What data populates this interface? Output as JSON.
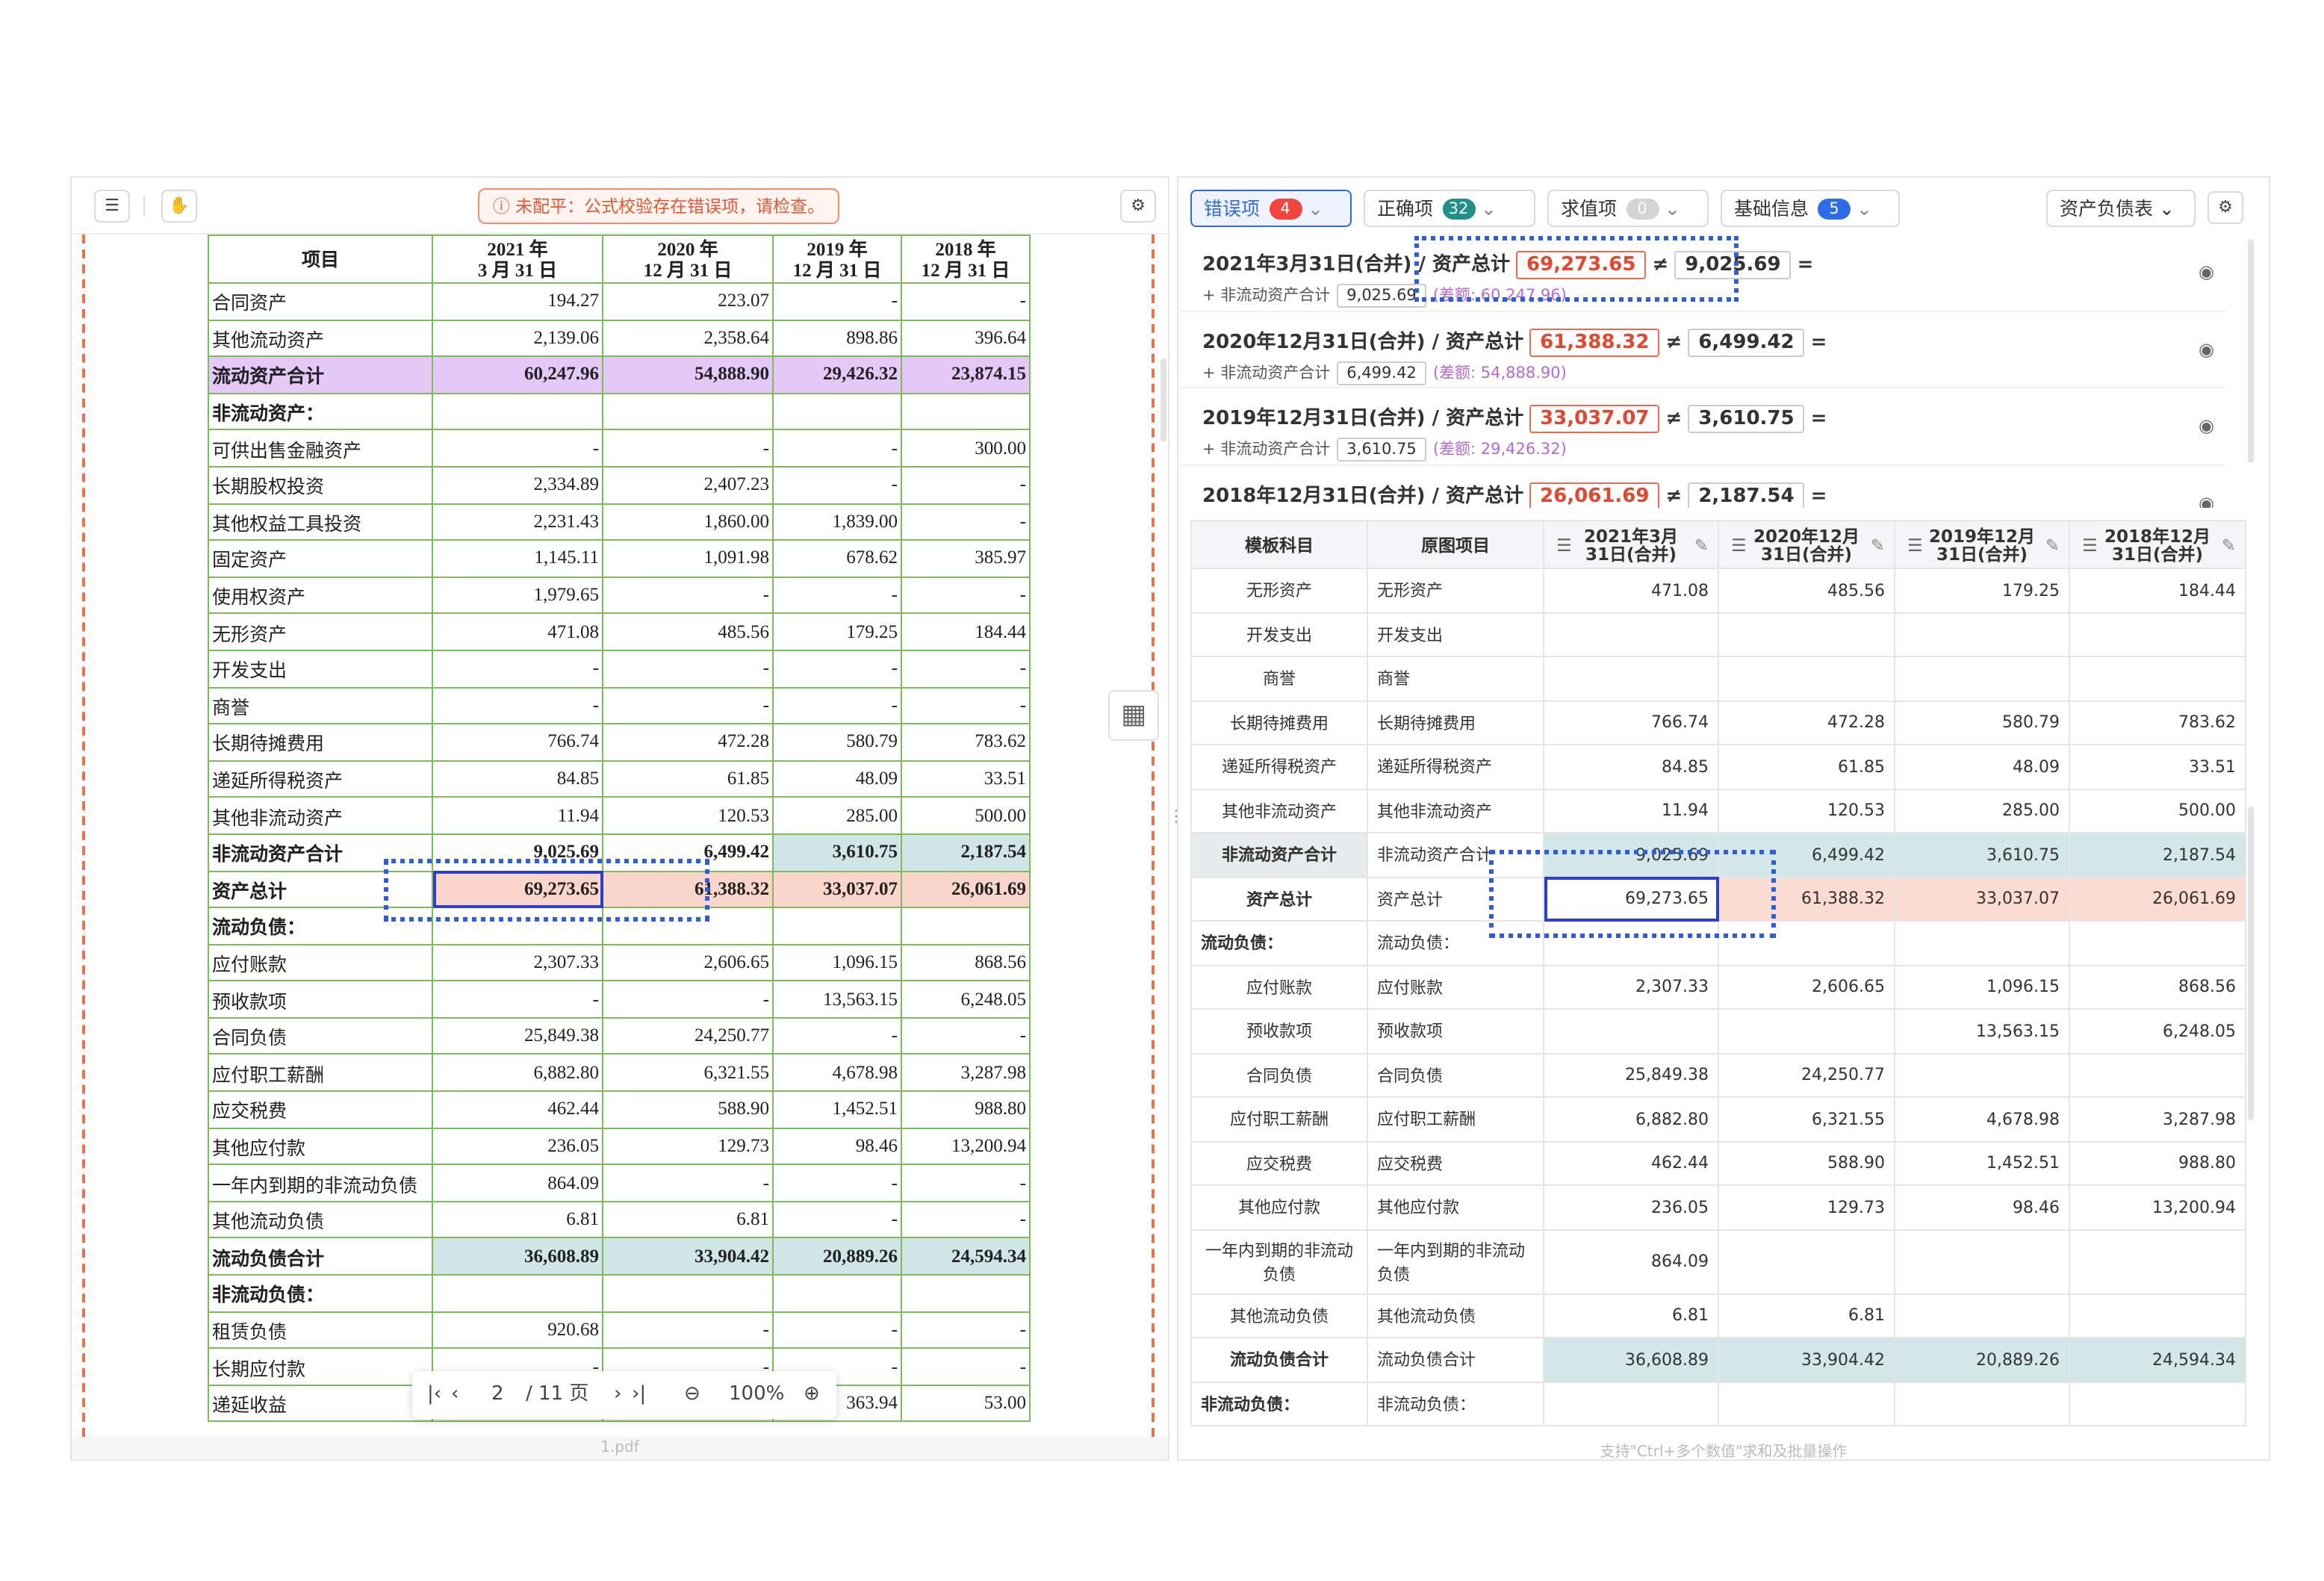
{
  "left_panel": {
    "banner": "未配平：公式校验存在错误项，请检查。",
    "file_name": "1.pdf",
    "page": "2",
    "page_total": "/ 11 页",
    "zoom": "100%",
    "table": {
      "header": [
        "项目",
        [
          "2021 年",
          "3 月 31 日"
        ],
        [
          "2020 年",
          "12 月 31 日"
        ],
        [
          "2019 年",
          "12 月 31 日"
        ],
        [
          "2018 年",
          "12 月 31 日"
        ]
      ],
      "rows": [
        {
          "cells": [
            "合同资产",
            "194.27",
            "223.07",
            "-",
            "-"
          ]
        },
        {
          "cells": [
            "其他流动资产",
            "2,139.06",
            "2,358.64",
            "898.86",
            "396.64"
          ]
        },
        {
          "cells": [
            "流动资产合计",
            "60,247.96",
            "54,888.90",
            "29,426.32",
            "23,874.15"
          ],
          "bold": true,
          "fills": [
            "#e4c9f7",
            "#e4c9f7",
            "#e4c9f7",
            "#e4c9f7",
            "#e4c9f7"
          ]
        },
        {
          "cells": [
            "非流动资产："
          ],
          "bold": true
        },
        {
          "cells": [
            "可供出售金融资产",
            "-",
            "-",
            "-",
            "300.00"
          ]
        },
        {
          "cells": [
            "长期股权投资",
            "2,334.89",
            "2,407.23",
            "-",
            "-"
          ]
        },
        {
          "cells": [
            "其他权益工具投资",
            "2,231.43",
            "1,860.00",
            "1,839.00",
            "-"
          ]
        },
        {
          "cells": [
            "固定资产",
            "1,145.11",
            "1,091.98",
            "678.62",
            "385.97"
          ]
        },
        {
          "cells": [
            "使用权资产",
            "1,979.65",
            "-",
            "-",
            "-"
          ]
        },
        {
          "cells": [
            "无形资产",
            "471.08",
            "485.56",
            "179.25",
            "184.44"
          ]
        },
        {
          "cells": [
            "开发支出",
            "-",
            "-",
            "-",
            "-"
          ]
        },
        {
          "cells": [
            "商誉",
            "-",
            "-",
            "-",
            "-"
          ]
        },
        {
          "cells": [
            "长期待摊费用",
            "766.74",
            "472.28",
            "580.79",
            "783.62"
          ]
        },
        {
          "cells": [
            "递延所得税资产",
            "84.85",
            "61.85",
            "48.09",
            "33.51"
          ]
        },
        {
          "cells": [
            "其他非流动资产",
            "11.94",
            "120.53",
            "285.00",
            "500.00"
          ]
        },
        {
          "cells": [
            "非流动资产合计",
            "9,025.69",
            "6,499.42",
            "3,610.75",
            "2,187.54"
          ],
          "bold": true,
          "fills": [
            null,
            null,
            null,
            "#cfe5e6",
            "#cfe5e6"
          ]
        },
        {
          "cells": [
            "资产总计",
            "69,273.65",
            "61,388.32",
            "33,037.07",
            "26,061.69"
          ],
          "bold": true,
          "fills": [
            null,
            "#f9d5cb",
            "#f9d5cb",
            "#f9d5cb",
            "#f9d5cb"
          ],
          "selected": 1
        },
        {
          "cells": [
            "流动负债："
          ],
          "bold": true
        },
        {
          "cells": [
            "应付账款",
            "2,307.33",
            "2,606.65",
            "1,096.15",
            "868.56"
          ]
        },
        {
          "cells": [
            "预收款项",
            "-",
            "-",
            "13,563.15",
            "6,248.05"
          ]
        },
        {
          "cells": [
            "合同负债",
            "25,849.38",
            "24,250.77",
            "-",
            "-"
          ]
        },
        {
          "cells": [
            "应付职工薪酬",
            "6,882.80",
            "6,321.55",
            "4,678.98",
            "3,287.98"
          ]
        },
        {
          "cells": [
            "应交税费",
            "462.44",
            "588.90",
            "1,452.51",
            "988.80"
          ]
        },
        {
          "cells": [
            "其他应付款",
            "236.05",
            "129.73",
            "98.46",
            "13,200.94"
          ]
        },
        {
          "cells": [
            "一年内到期的非流动负债",
            "864.09",
            "-",
            "-",
            "-"
          ]
        },
        {
          "cells": [
            "其他流动负债",
            "6.81",
            "6.81",
            "-",
            "-"
          ]
        },
        {
          "cells": [
            "流动负债合计",
            "36,608.89",
            "33,904.42",
            "20,889.26",
            "24,594.34"
          ],
          "bold": true,
          "fills": [
            null,
            "#cfe5e6",
            "#cfe5e6",
            "#cfe5e6",
            "#cfe5e6"
          ]
        },
        {
          "cells": [
            "非流动负债："
          ],
          "bold": true
        },
        {
          "cells": [
            "租赁负债",
            "920.68",
            "-",
            "-",
            "-"
          ]
        },
        {
          "cells": [
            "长期应付款",
            "-",
            "-",
            "-",
            "-"
          ]
        },
        {
          "cells": [
            "递延收益",
            null,
            null,
            "363.94",
            "53.00"
          ]
        }
      ]
    }
  },
  "right_panel": {
    "tabs": [
      {
        "label": "错误项",
        "count": 4,
        "badge_color": "#f0463c"
      },
      {
        "label": "正确项",
        "count": 32,
        "badge_color": "#1f8f8a"
      },
      {
        "label": "求值项",
        "count": 0,
        "badge_color": "#d4d4d4"
      },
      {
        "label": "基础信息",
        "count": 5,
        "badge_color": "#2e6be6"
      }
    ],
    "sheet_select": "资产负债表",
    "errors": [
      {
        "title": "2021年3月31日(合并) / 资产总计",
        "left": "69,273.65",
        "op": "≠",
        "right": "9,025.69",
        "eq": "=",
        "addend": "+ 非流动资产合计",
        "addend_value": "9,025.69",
        "diff": "(差额: 60,247.96)"
      },
      {
        "title": "2020年12月31日(合并) / 资产总计",
        "left": "61,388.32",
        "op": "≠",
        "right": "6,499.42",
        "eq": "=",
        "addend": "+ 非流动资产合计",
        "addend_value": "6,499.42",
        "diff": "(差额: 54,888.90)"
      },
      {
        "title": "2019年12月31日(合并) / 资产总计",
        "left": "33,037.07",
        "op": "≠",
        "right": "3,610.75",
        "eq": "=",
        "addend": "+ 非流动资产合计",
        "addend_value": "3,610.75",
        "diff": "(差额: 29,426.32)"
      },
      {
        "title": "2018年12月31日(合并) / 资产总计",
        "left": "26,061.69",
        "op": "≠",
        "right": "2,187.54",
        "eq": "="
      }
    ],
    "table": {
      "header": [
        "模板科目",
        "原图项目",
        [
          "2021年3月",
          "31日(合并)"
        ],
        [
          "2020年12月",
          "31日(合并)"
        ],
        [
          "2019年12月",
          "31日(合并)"
        ],
        [
          "2018年12月",
          "31日(合并)"
        ]
      ],
      "rows": [
        {
          "cells": [
            "无形资产",
            "无形资产",
            "471.08",
            "485.56",
            "179.25",
            "184.44"
          ]
        },
        {
          "cells": [
            "开发支出",
            "开发支出",
            null,
            null,
            null,
            null
          ]
        },
        {
          "cells": [
            "商誉",
            "商誉",
            null,
            null,
            null,
            null
          ]
        },
        {
          "cells": [
            "长期待摊费用",
            "长期待摊费用",
            "766.74",
            "472.28",
            "580.79",
            "783.62"
          ]
        },
        {
          "cells": [
            "递延所得税资产",
            "递延所得税资产",
            "84.85",
            "61.85",
            "48.09",
            "33.51"
          ]
        },
        {
          "cells": [
            "其他非流动资产",
            "其他非流动资产",
            "11.94",
            "120.53",
            "285.00",
            "500.00"
          ]
        },
        {
          "cells": [
            "非流动资产合计",
            "非流动资产合计",
            "9,025.69",
            "6,499.42",
            "3,610.75",
            "2,187.54"
          ],
          "bold": true,
          "fills": [
            "#e6ecee",
            null,
            "#d3e7e9",
            "#d3e7e9",
            "#d3e7e9",
            "#d3e7e9"
          ]
        },
        {
          "cells": [
            "资产总计",
            "资产总计",
            "69,273.65",
            "61,388.32",
            "33,037.07",
            "26,061.69"
          ],
          "bold": true,
          "fills": [
            null,
            null,
            null,
            "#fbdcd2",
            "#fbdcd2",
            "#fbdcd2"
          ],
          "selected": 2
        },
        {
          "cells": [
            "流动负债：",
            "流动负债：",
            null,
            null,
            null,
            null
          ],
          "bold": true
        },
        {
          "cells": [
            "应付账款",
            "应付账款",
            "2,307.33",
            "2,606.65",
            "1,096.15",
            "868.56"
          ]
        },
        {
          "cells": [
            "预收款项",
            "预收款项",
            null,
            null,
            "13,563.15",
            "6,248.05"
          ]
        },
        {
          "cells": [
            "合同负债",
            "合同负债",
            "25,849.38",
            "24,250.77",
            null,
            null
          ]
        },
        {
          "cells": [
            "应付职工薪酬",
            "应付职工薪酬",
            "6,882.80",
            "6,321.55",
            "4,678.98",
            "3,287.98"
          ]
        },
        {
          "cells": [
            "应交税费",
            "应交税费",
            "462.44",
            "588.90",
            "1,452.51",
            "988.80"
          ]
        },
        {
          "cells": [
            "其他应付款",
            "其他应付款",
            "236.05",
            "129.73",
            "98.46",
            "13,200.94"
          ]
        },
        {
          "cells": [
            "一年内到期的非流动负债",
            "一年内到期的非流动负债",
            "864.09",
            null,
            null,
            null
          ]
        },
        {
          "cells": [
            "其他流动负债",
            "其他流动负债",
            "6.81",
            "6.81",
            null,
            null
          ]
        },
        {
          "cells": [
            "流动负债合计",
            "流动负债合计",
            "36,608.89",
            "33,904.42",
            "20,889.26",
            "24,594.34"
          ],
          "bold": true,
          "fills": [
            null,
            null,
            "#d3e7e9",
            "#d3e7e9",
            "#d3e7e9",
            "#d3e7e9"
          ]
        },
        {
          "cells": [
            "非流动负债：",
            "非流动负债：",
            null,
            null,
            null,
            null
          ],
          "bold": true
        }
      ]
    },
    "hint": "支持\"Ctrl+多个数值\"求和及批量操作"
  }
}
